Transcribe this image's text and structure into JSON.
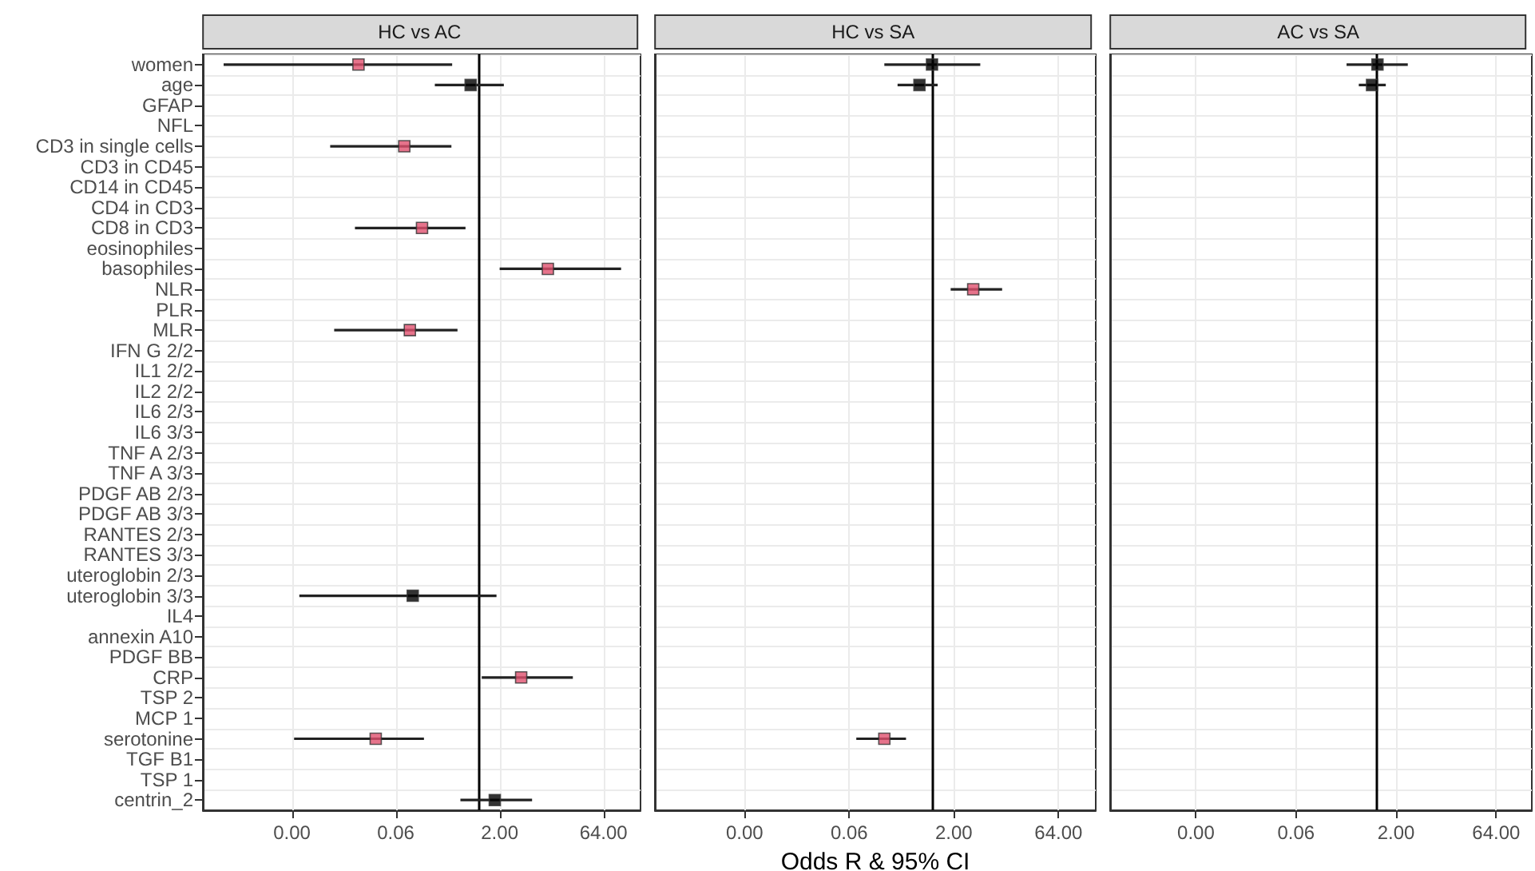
{
  "chart_data": [
    {
      "type": "scatter",
      "title": "HC vs AC",
      "orientation": "horizontal",
      "log": "x",
      "grid": true,
      "marker": "square",
      "categories": [
        "women",
        "age",
        "GFAP",
        "NFL",
        "CD3 in single cells",
        "CD3 in CD45",
        "CD14 in CD45",
        "CD4 in CD3",
        "CD8 in CD3",
        "eosinophiles",
        "basophiles",
        "NLR",
        "PLR",
        "MLR",
        "IFN G 2/2",
        "IL1 2/2",
        "IL2 2/2",
        "IL6 2/3",
        "IL6 3/3",
        "TNF A 2/3",
        "TNF A 3/3",
        "PDGF AB 2/3",
        "PDGF AB 3/3",
        "RANTES 2/3",
        "RANTES 3/3",
        "uteroglobin 2/3",
        "uteroglobin 3/3",
        "IL4",
        "annexin A10",
        "PDGF BB",
        "CRP",
        "TSP 2",
        "MCP 1",
        "serotonine",
        "TGF B1",
        "TSP 1",
        "centrin_2"
      ],
      "values": [
        0.018,
        0.76,
        null,
        null,
        0.083,
        null,
        null,
        null,
        0.15,
        null,
        10,
        null,
        null,
        0.1,
        null,
        null,
        null,
        null,
        null,
        null,
        null,
        null,
        null,
        null,
        null,
        null,
        0.11,
        null,
        null,
        null,
        4.1,
        null,
        null,
        0.032,
        null,
        null,
        1.7
      ],
      "errors": [
        [
          0.0002,
          0.41
        ],
        [
          0.23,
          2.3
        ],
        null,
        null,
        [
          0.007,
          0.4
        ],
        null,
        null,
        null,
        [
          0.016,
          0.64
        ],
        null,
        [
          2,
          115
        ],
        null,
        null,
        [
          0.008,
          0.49
        ],
        null,
        null,
        null,
        null,
        null,
        null,
        null,
        null,
        null,
        null,
        null,
        null,
        [
          0.0025,
          1.8
        ],
        null,
        null,
        null,
        [
          1.1,
          23
        ],
        null,
        null,
        [
          0.0021,
          0.16
        ],
        null,
        null,
        [
          0.54,
          5.9
        ]
      ],
      "colors": [
        "#e0506e",
        "#000000",
        null,
        null,
        "#e0506e",
        null,
        null,
        null,
        "#e0506e",
        null,
        "#e0506e",
        null,
        null,
        "#e0506e",
        null,
        null,
        null,
        null,
        null,
        null,
        null,
        null,
        null,
        null,
        null,
        null,
        "#000000",
        null,
        null,
        null,
        "#e0506e",
        null,
        null,
        "#e0506e",
        null,
        null,
        "#000000"
      ],
      "xlim": [
        0.0001,
        220
      ],
      "xticks": [
        {
          "value": 0.001953125,
          "label": "0.00"
        },
        {
          "value": 0.0625,
          "label": "0.06"
        },
        {
          "value": 2,
          "label": "2.00"
        },
        {
          "value": 64,
          "label": "64.00"
        }
      ],
      "ref_lines": [
        {
          "axis": "x",
          "value": 1,
          "color": "#000000"
        }
      ]
    },
    {
      "type": "scatter",
      "title": "HC vs SA",
      "orientation": "horizontal",
      "log": "x",
      "grid": true,
      "marker": "square",
      "tick_labels": "x",
      "xlabel": "Odds R & 95% CI",
      "categories": [
        null,
        null,
        null,
        null,
        null,
        null,
        null,
        null,
        null,
        null,
        null,
        null,
        null,
        null,
        null,
        null,
        null,
        null,
        null,
        null,
        null,
        null,
        null,
        null,
        null,
        null,
        null,
        null,
        null,
        null,
        null,
        null,
        null,
        null,
        null,
        null,
        null
      ],
      "values": [
        0.97,
        0.64,
        null,
        null,
        null,
        null,
        null,
        null,
        null,
        null,
        null,
        3.8,
        null,
        null,
        null,
        null,
        null,
        null,
        null,
        null,
        null,
        null,
        null,
        null,
        null,
        null,
        null,
        null,
        null,
        null,
        null,
        null,
        null,
        0.2,
        null,
        null,
        null
      ],
      "errors": [
        [
          0.2,
          4.8
        ],
        [
          0.31,
          1.17
        ],
        null,
        null,
        null,
        null,
        null,
        null,
        null,
        null,
        null,
        [
          1.8,
          9.9
        ],
        null,
        null,
        null,
        null,
        null,
        null,
        null,
        null,
        null,
        null,
        null,
        null,
        null,
        null,
        null,
        null,
        null,
        null,
        null,
        null,
        null,
        [
          0.079,
          0.41
        ],
        null,
        null,
        null
      ],
      "colors": [
        "#000000",
        "#000000",
        null,
        null,
        null,
        null,
        null,
        null,
        null,
        null,
        null,
        "#e0506e",
        null,
        null,
        null,
        null,
        null,
        null,
        null,
        null,
        null,
        null,
        null,
        null,
        null,
        null,
        null,
        null,
        null,
        null,
        null,
        null,
        null,
        "#e0506e",
        null,
        null,
        null
      ],
      "xlim": [
        0.0001,
        220
      ],
      "xticks": [
        {
          "value": 0.001953125,
          "label": "0.00"
        },
        {
          "value": 0.0625,
          "label": "0.06"
        },
        {
          "value": 2,
          "label": "2.00"
        },
        {
          "value": 64,
          "label": "64.00"
        }
      ],
      "ref_lines": [
        {
          "axis": "x",
          "value": 1,
          "color": "#000000"
        }
      ]
    },
    {
      "type": "scatter",
      "title": "AC vs SA",
      "orientation": "horizontal",
      "log": "x",
      "grid": true,
      "marker": "square",
      "tick_labels": "x",
      "categories": [
        null,
        null,
        null,
        null,
        null,
        null,
        null,
        null,
        null,
        null,
        null,
        null,
        null,
        null,
        null,
        null,
        null,
        null,
        null,
        null,
        null,
        null,
        null,
        null,
        null,
        null,
        null,
        null,
        null,
        null,
        null,
        null,
        null,
        null,
        null,
        null,
        null
      ],
      "values": [
        1.05,
        0.87,
        null,
        null,
        null,
        null,
        null,
        null,
        null,
        null,
        null,
        null,
        null,
        null,
        null,
        null,
        null,
        null,
        null,
        null,
        null,
        null,
        null,
        null,
        null,
        null,
        null,
        null,
        null,
        null,
        null,
        null,
        null,
        null,
        null,
        null,
        null
      ],
      "errors": [
        [
          0.36,
          3
        ],
        [
          0.55,
          1.4
        ],
        null,
        null,
        null,
        null,
        null,
        null,
        null,
        null,
        null,
        null,
        null,
        null,
        null,
        null,
        null,
        null,
        null,
        null,
        null,
        null,
        null,
        null,
        null,
        null,
        null,
        null,
        null,
        null,
        null,
        null,
        null,
        null,
        null,
        null,
        null
      ],
      "colors": [
        "#000000",
        "#000000",
        null,
        null,
        null,
        null,
        null,
        null,
        null,
        null,
        null,
        null,
        null,
        null,
        null,
        null,
        null,
        null,
        null,
        null,
        null,
        null,
        null,
        null,
        null,
        null,
        null,
        null,
        null,
        null,
        null,
        null,
        null,
        null,
        null,
        null,
        null
      ],
      "xlim": [
        0.0001,
        220
      ],
      "xticks": [
        {
          "value": 0.001953125,
          "label": "0.00"
        },
        {
          "value": 0.0625,
          "label": "0.06"
        },
        {
          "value": 2,
          "label": "2.00"
        },
        {
          "value": 64,
          "label": "64.00"
        }
      ],
      "ref_lines": [
        {
          "axis": "x",
          "value": 1,
          "color": "#000000"
        }
      ]
    }
  ]
}
